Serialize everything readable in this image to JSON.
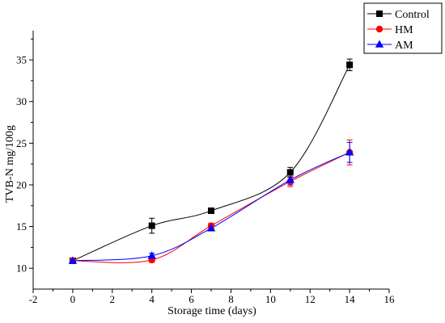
{
  "chart_data": {
    "type": "line",
    "xlabel": "Storage time (days)",
    "ylabel": "TVB-N mg/100g",
    "xlim": [
      -2,
      16
    ],
    "ylim": [
      7.5,
      38.5
    ],
    "xticks": [
      -2,
      0,
      2,
      4,
      6,
      8,
      10,
      12,
      14,
      16
    ],
    "yticks": [
      10,
      15,
      20,
      25,
      30,
      35
    ],
    "legend_position": "top-right",
    "x": [
      0,
      4,
      7,
      11,
      14
    ],
    "series": [
      {
        "name": "Control",
        "color": "#000000",
        "marker": "square",
        "values": [
          10.9,
          15.1,
          16.9,
          21.5,
          34.4
        ],
        "errors": [
          0.3,
          0.9,
          0.3,
          0.6,
          0.7
        ]
      },
      {
        "name": "HM",
        "color": "#ff0000",
        "marker": "circle",
        "values": [
          10.9,
          11.0,
          15.1,
          20.4,
          23.9
        ],
        "errors": [
          0.3,
          0.3,
          0.3,
          0.6,
          1.5
        ]
      },
      {
        "name": "AM",
        "color": "#0000ff",
        "marker": "triangle",
        "values": [
          10.9,
          11.5,
          14.8,
          20.6,
          23.9
        ],
        "errors": [
          0.3,
          0.3,
          0.3,
          0.6,
          1.2
        ]
      }
    ]
  }
}
